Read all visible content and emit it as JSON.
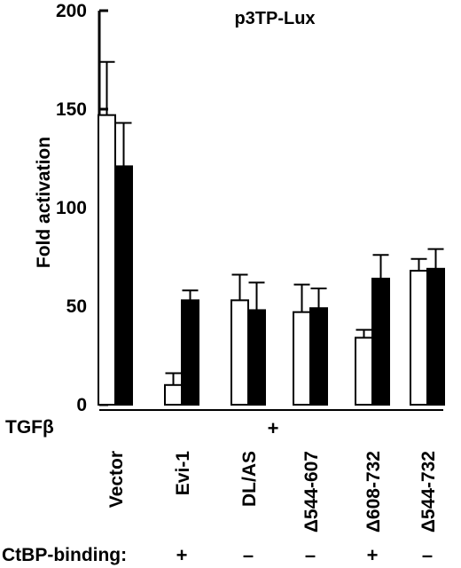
{
  "chart_data": {
    "type": "bar",
    "title": "p3TP-Lux",
    "ylabel": "Fold activation",
    "xlabel": "",
    "ylim": [
      0,
      200
    ],
    "yticks": [
      "0",
      "50",
      "100",
      "150",
      "200"
    ],
    "grid": false,
    "legend": "none",
    "categories": [
      "Vector",
      "Evi-1",
      "DL/AS",
      "Δ544-607",
      "Δ608-732",
      "Δ544-732"
    ],
    "series": [
      {
        "fill": "#ffffff",
        "values": [
          147,
          10,
          53,
          47,
          34,
          68
        ],
        "errors": [
          27,
          6,
          13,
          14,
          4,
          6
        ]
      },
      {
        "fill": "#000000",
        "values": [
          121,
          53,
          48,
          49,
          64,
          69
        ],
        "errors": [
          22,
          5,
          14,
          10,
          12,
          10
        ]
      }
    ],
    "treatment_label": "TGFβ",
    "treatment_sign": "+",
    "ctbp_label": "CtBP-binding:",
    "ctbp_values": [
      "+",
      "–",
      "–",
      "+",
      "–"
    ]
  }
}
